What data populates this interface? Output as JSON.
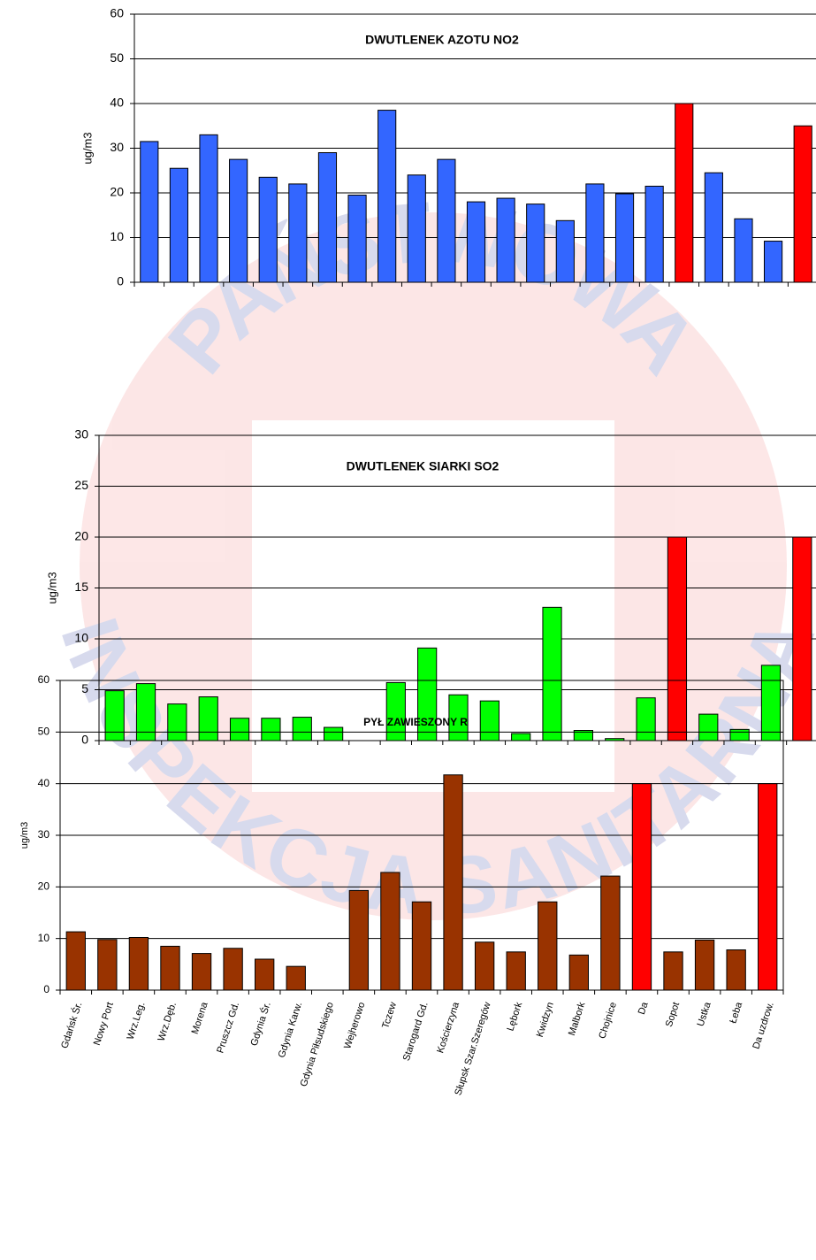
{
  "watermark": {
    "top": "PAŃSTWOWA",
    "bottom": "INSPEKCJA SANITARNA"
  },
  "chart_data": [
    {
      "type": "bar",
      "title": "DWUTLENEK AZOTU NO2",
      "y_label": "ug/m3",
      "values": [
        31.5,
        25.5,
        33,
        27.5,
        23.5,
        22,
        29,
        19.5,
        38.5,
        24,
        27.5,
        18,
        18.8,
        17.5,
        13.8,
        22,
        19.8,
        21.5,
        40,
        24.5,
        14.2,
        9.2,
        35
      ],
      "colors": [
        "#3366ff",
        "#3366ff",
        "#3366ff",
        "#3366ff",
        "#3366ff",
        "#3366ff",
        "#3366ff",
        "#3366ff",
        "#3366ff",
        "#3366ff",
        "#3366ff",
        "#3366ff",
        "#3366ff",
        "#3366ff",
        "#3366ff",
        "#3366ff",
        "#3366ff",
        "#3366ff",
        "#ff0000",
        "#3366ff",
        "#3366ff",
        "#3366ff",
        "#ff0000"
      ],
      "ylim": [
        0,
        60
      ],
      "yticks": [
        0,
        10,
        20,
        30,
        40,
        50,
        60
      ],
      "grid": true
    },
    {
      "type": "bar",
      "title": "DWUTLENEK SIARKI SO2",
      "y_label": "ug/m3",
      "values": [
        4.9,
        5.6,
        3.6,
        4.3,
        2.2,
        2.2,
        2.3,
        1.3,
        null,
        5.7,
        9.1,
        4.5,
        3.9,
        0.7,
        13.1,
        1.0,
        0.2,
        4.2,
        20,
        2.6,
        1.1,
        7.4,
        20
      ],
      "colors": [
        "#00ff00",
        "#00ff00",
        "#00ff00",
        "#00ff00",
        "#00ff00",
        "#00ff00",
        "#00ff00",
        "#00ff00",
        "#00ff00",
        "#00ff00",
        "#00ff00",
        "#00ff00",
        "#00ff00",
        "#00ff00",
        "#00ff00",
        "#00ff00",
        "#00ff00",
        "#00ff00",
        "#ff0000",
        "#00ff00",
        "#00ff00",
        "#00ff00",
        "#ff0000"
      ],
      "ylim": [
        0,
        30
      ],
      "yticks": [
        0,
        5,
        10,
        15,
        20,
        25,
        30
      ],
      "grid": true
    },
    {
      "type": "bar",
      "title": "PYŁ ZAWIESZONY R",
      "y_label": "ug/m3",
      "categories": [
        "Gdańsk Śr.",
        "Nowy Port",
        "Wrz.Leg.",
        "Wrz.Dęb.",
        "Morena",
        "Pruszcz Gd.",
        "Gdynia Śr.",
        "Gdynia Karw.",
        "Gdynia Piłsudskiego",
        "Wejherowo",
        "Tczew",
        "Starogard Gd.",
        "Kościerzyna",
        "Słupsk Szar.Szeregów",
        "Lębork",
        "Kwidzyn",
        "Malbork",
        "Chojnice",
        "Da",
        "Sopot",
        "Ustka",
        "Łeba",
        "Da uzdrow."
      ],
      "values": [
        11.3,
        9.8,
        10.2,
        8.5,
        7.1,
        8.1,
        6,
        4.6,
        null,
        19.3,
        22.8,
        17.1,
        41.7,
        9.3,
        7.4,
        17.1,
        6.8,
        22.1,
        40,
        7.4,
        9.7,
        7.8,
        40
      ],
      "colors": [
        "#993300",
        "#993300",
        "#993300",
        "#993300",
        "#993300",
        "#993300",
        "#993300",
        "#993300",
        "#993300",
        "#993300",
        "#993300",
        "#993300",
        "#993300",
        "#993300",
        "#993300",
        "#993300",
        "#993300",
        "#993300",
        "#ff0000",
        "#993300",
        "#993300",
        "#993300",
        "#ff0000"
      ],
      "ylim": [
        0,
        60
      ],
      "yticks": [
        0,
        10,
        20,
        30,
        40,
        50,
        60
      ],
      "grid": true
    }
  ]
}
